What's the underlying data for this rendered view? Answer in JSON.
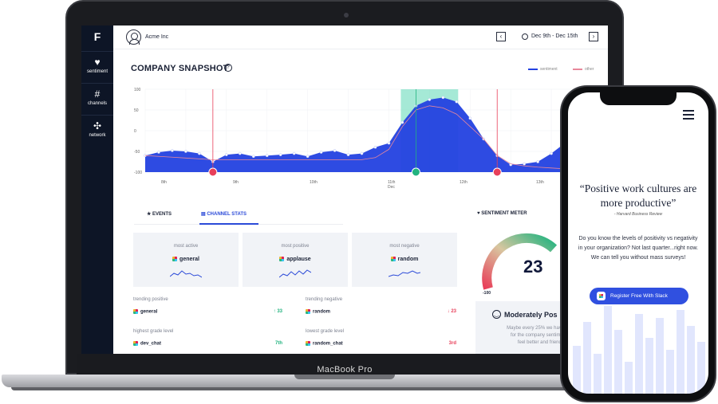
{
  "laptop": {
    "brand": "MacBook Pro"
  },
  "sidebar": {
    "logo": "F",
    "items": [
      {
        "label": "sentiment",
        "icon": "heart-icon"
      },
      {
        "label": "channels",
        "icon": "hash-icon"
      },
      {
        "label": "network",
        "icon": "network-icon"
      }
    ]
  },
  "topbar": {
    "company": "Acme Inc",
    "date_range": "Dec 9th - Dec 15th"
  },
  "snapshot": {
    "title": "COMPANY SNAPSHOT",
    "legend": [
      "sentiment",
      "other"
    ],
    "colors": {
      "sentiment": "#2341e0",
      "other": "#e8879b",
      "highlight": "#7fe0c4",
      "marker_neg": "#e8405a",
      "marker_pos": "#22b37f"
    }
  },
  "chart_data": {
    "type": "area",
    "y_ticks": [
      "100",
      "50",
      "0",
      "-50",
      "-100"
    ],
    "ylim": [
      -100,
      100
    ],
    "x_ticks": [
      "8th",
      "9th",
      "10th",
      "11th",
      "12th",
      "13th"
    ],
    "x_sublabel": "Dec",
    "series": [
      {
        "name": "sentiment",
        "values": [
          -60,
          -52,
          -48,
          -50,
          -55,
          -75,
          -58,
          -55,
          -62,
          -60,
          -58,
          -55,
          -62,
          -52,
          -48,
          -58,
          -55,
          -40,
          -30,
          20,
          60,
          75,
          80,
          70,
          30,
          -20,
          -60,
          -82,
          -80,
          -75,
          -55,
          -30,
          -50,
          -45
        ]
      },
      {
        "name": "other",
        "values": [
          -60,
          -62,
          -64,
          -66,
          -68,
          -70,
          -70,
          -70,
          -70,
          -70,
          -70,
          -70,
          -70,
          -70,
          -70,
          -70,
          -70,
          -65,
          -45,
          10,
          50,
          60,
          55,
          40,
          10,
          -20,
          -60,
          -80,
          -85,
          -88,
          -90,
          -92,
          -85,
          -80
        ]
      }
    ]
  },
  "tabs": {
    "events": "EVENTS",
    "channel_stats": "CHANNEL STATS"
  },
  "cards": [
    {
      "label": "most active",
      "channel": "general"
    },
    {
      "label": "most positive",
      "channel": "applause"
    },
    {
      "label": "most negative",
      "channel": "random"
    }
  ],
  "stats": {
    "trending_positive": {
      "label": "trending positive",
      "channel": "general",
      "value": "↑ 33"
    },
    "trending_negative": {
      "label": "trending negative",
      "channel": "random",
      "value": "↓ 23"
    },
    "highest_grade": {
      "label": "highest grade level",
      "channel": "dev_chat",
      "value": "7th"
    },
    "lowest_grade": {
      "label": "lowest grade level",
      "channel": "random_chat",
      "value": "3rd"
    }
  },
  "meter": {
    "title": "SENTIMENT METER",
    "score": "23",
    "min_label": "-100",
    "mood": "Moderately Pos",
    "description": "Maybe every 25% we have a m\nfor the company sentiment t\nfeel better and friendl"
  },
  "phone": {
    "quote": "“Positive work cultures are more productive”",
    "quote_source": "- Harvard Business Review",
    "body": "Do you know the levels of positivity vs negativity in your organization?  Not last quarter...right now. We can tell you without mass surveys!",
    "cta": "Register Free With Slack"
  }
}
